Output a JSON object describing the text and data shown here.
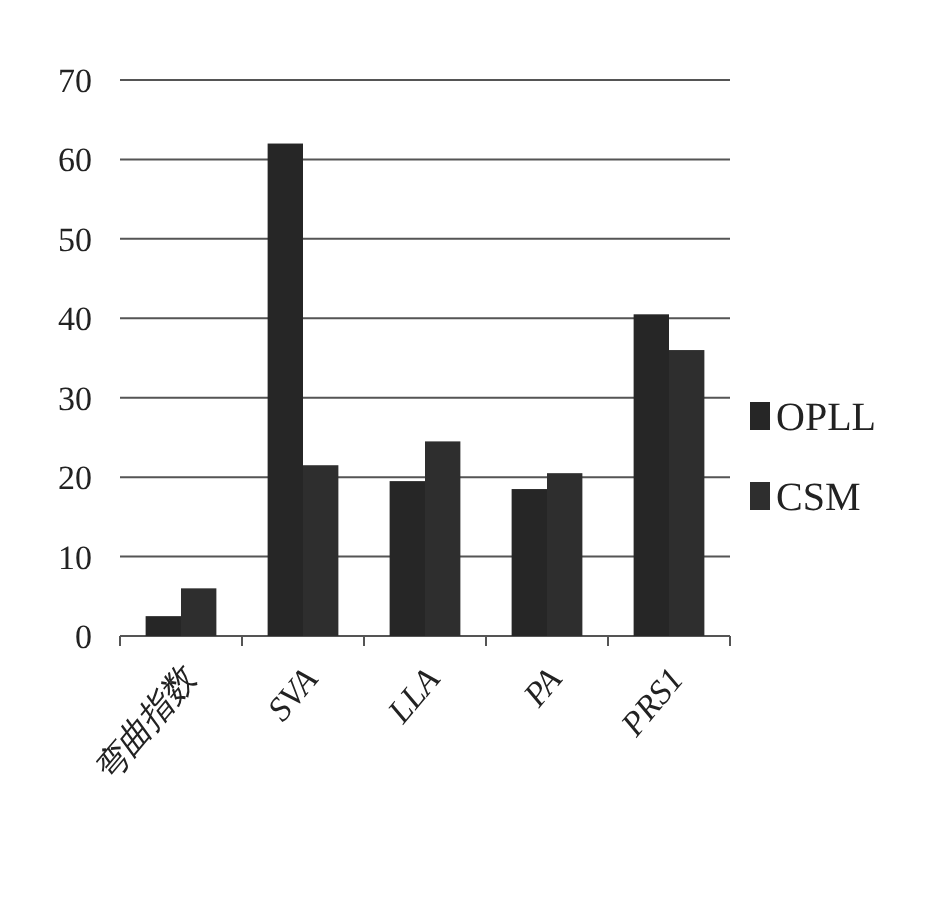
{
  "chart_data": {
    "type": "bar",
    "categories": [
      "弯曲指数",
      "SVA",
      "LLA",
      "PA",
      "PRS1"
    ],
    "series": [
      {
        "name": "OPLL",
        "color": "#262626",
        "values": [
          2.5,
          62,
          19.5,
          18.5,
          40.5
        ]
      },
      {
        "name": "CSM",
        "color": "#2e2e2e",
        "values": [
          6,
          21.5,
          24.5,
          20.5,
          36
        ]
      }
    ],
    "ylim": [
      0,
      70
    ],
    "yticks": [
      0,
      10,
      20,
      30,
      40,
      50,
      60,
      70
    ],
    "grid": "y",
    "legend": "right"
  }
}
